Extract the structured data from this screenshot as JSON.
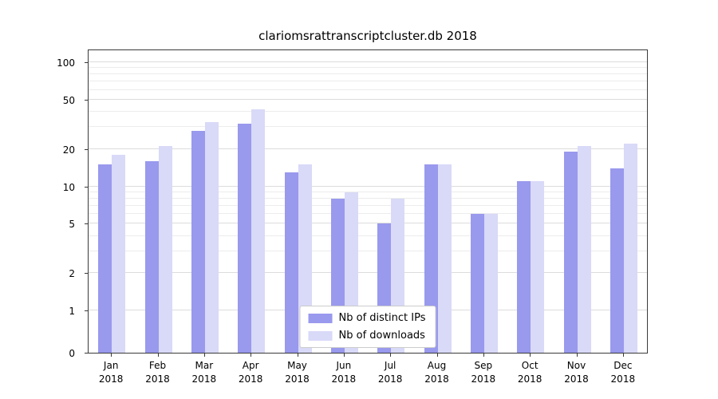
{
  "chart_data": {
    "type": "bar",
    "title": "clariomsrattranscriptcluster.db 2018",
    "categories": [
      "Jan",
      "Feb",
      "Mar",
      "Apr",
      "May",
      "Jun",
      "Jul",
      "Aug",
      "Sep",
      "Oct",
      "Nov",
      "Dec"
    ],
    "year_label": "2018",
    "series": [
      {
        "name": "Nb of distinct IPs",
        "color": "#9999ee",
        "values": [
          15,
          16,
          28,
          32,
          13,
          8,
          5,
          15,
          6,
          11,
          19,
          14
        ]
      },
      {
        "name": "Nb of downloads",
        "color": "#d9d9f8",
        "values": [
          18,
          21,
          33,
          42,
          15,
          9,
          8,
          15,
          6,
          11,
          21,
          22
        ]
      }
    ],
    "xlabel": "",
    "ylabel": "",
    "yticks": [
      0,
      1,
      2,
      5,
      10,
      20,
      50,
      100
    ],
    "minor_gridlines": [
      3,
      4,
      6,
      7,
      8,
      9,
      30,
      40,
      60,
      70,
      80,
      90
    ],
    "ylim": [
      0,
      125
    ],
    "scale": "symlog",
    "grid": true,
    "legend_position": "lower center"
  },
  "colors": {
    "grid_major": "#dcdcdc",
    "grid_minor": "#ececec",
    "axis": "#3a3a3a",
    "background": "#ffffff"
  }
}
